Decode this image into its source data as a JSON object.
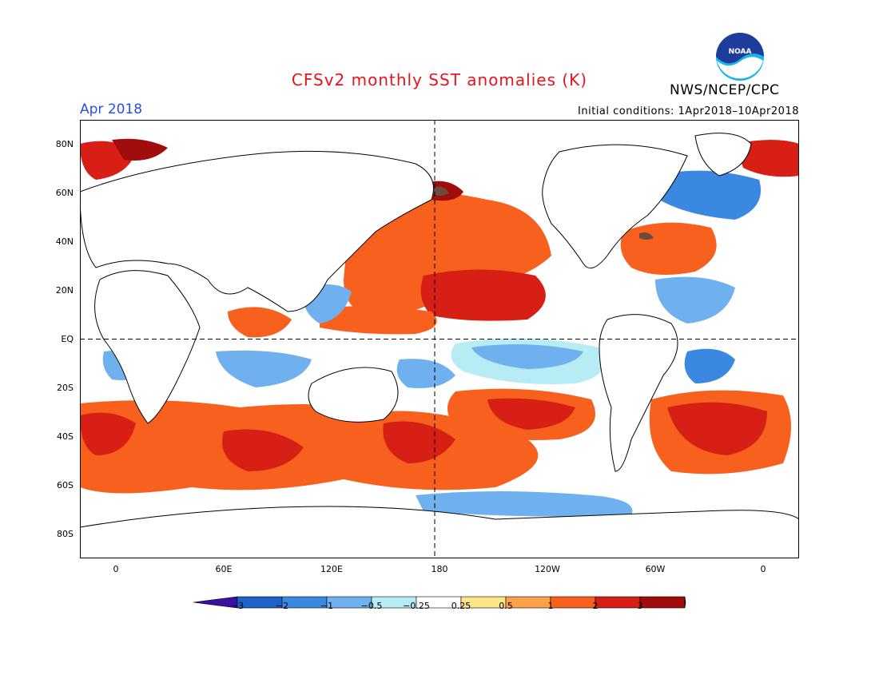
{
  "header": {
    "title": "CFSv2 monthly SST anomalies (K)",
    "month": "Apr 2018",
    "initial_conditions": "Initial conditions: 1Apr2018–10Apr2018",
    "agency": "NWS/NCEP/CPC",
    "logo_text": "NOAA"
  },
  "colors": {
    "title": "#e8141b",
    "month": "#2850e6",
    "frame": "#000000",
    "land": "#ffffff",
    "m3": "#3b0fa3",
    "m2": "#1f63c9",
    "m1": "#3a88e0",
    "m05": "#6fb1ee",
    "m025": "#b7ecf5",
    "zero": "#ffffff",
    "p025": "#fde58a",
    "p05": "#fda24a",
    "p1": "#f8601d",
    "p2": "#d71f16",
    "p3": "#a10d0d",
    "p3plus": "#6e4a3d"
  },
  "axes": {
    "lat_labels": [
      "80N",
      "60N",
      "40N",
      "20N",
      "EQ",
      "20S",
      "40S",
      "60S",
      "80S"
    ],
    "lon_labels": [
      "0",
      "60E",
      "120E",
      "180",
      "120W",
      "60W",
      "0"
    ]
  },
  "colorbar": {
    "labels": [
      "−3",
      "−2",
      "−1",
      "−0.5",
      "−0.25",
      "0.25",
      "0.5",
      "1",
      "2",
      "3"
    ],
    "levels": [
      -3,
      -2,
      -1,
      -0.5,
      -0.25,
      0.25,
      0.5,
      1,
      2,
      3
    ]
  },
  "map": {
    "projection": "cylindrical equidistant",
    "lon_center": 180,
    "lat_range": [
      -90,
      90
    ],
    "lon_range": [
      -20,
      380
    ],
    "reference_lines": [
      "Equator",
      "180"
    ]
  }
}
